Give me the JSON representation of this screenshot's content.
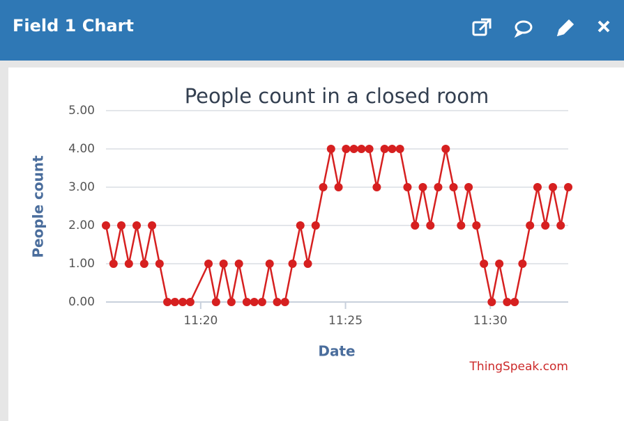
{
  "panel": {
    "title": "Field 1 Chart"
  },
  "chart_data": {
    "type": "line",
    "title": "People count in a closed room",
    "x_label": "Date",
    "y_label": "People count",
    "credit": "ThingSpeak.com",
    "x": [
      16.73,
      16.99,
      17.26,
      17.52,
      17.79,
      18.05,
      18.32,
      18.58,
      18.85,
      19.11,
      19.38,
      19.64,
      20.27,
      20.53,
      20.79,
      21.06,
      21.32,
      21.59,
      21.85,
      22.12,
      22.38,
      22.64,
      22.91,
      23.17,
      23.44,
      23.7,
      23.97,
      24.23,
      24.5,
      24.76,
      25.02,
      25.29,
      25.55,
      25.82,
      26.08,
      26.35,
      26.61,
      26.88,
      27.14,
      27.4,
      27.67,
      27.93,
      28.2,
      28.46,
      28.73,
      28.99,
      29.25,
      29.52,
      29.78,
      30.05,
      30.31,
      30.58,
      30.84,
      31.11,
      31.37,
      31.63,
      31.9,
      32.16,
      32.43,
      32.69
    ],
    "series": [
      {
        "name": "People count",
        "color": "#d62020",
        "values": [
          2,
          1,
          2,
          1,
          2,
          1,
          2,
          1,
          0,
          0,
          0,
          0,
          1,
          0,
          1,
          0,
          1,
          0,
          0,
          0,
          1,
          0,
          0,
          1,
          2,
          1,
          2,
          3,
          4,
          3,
          4,
          4,
          4,
          4,
          3,
          4,
          4,
          4,
          3,
          2,
          3,
          2,
          3,
          4,
          3,
          2,
          3,
          2,
          1,
          0,
          1,
          0,
          0,
          1,
          2,
          3,
          2,
          3,
          2,
          3
        ]
      }
    ],
    "xlim": [
      16.73,
      32.69
    ],
    "xticks": [
      {
        "value": 20,
        "label": "11:20"
      },
      {
        "value": 25,
        "label": "11:25"
      },
      {
        "value": 30,
        "label": "11:30"
      }
    ],
    "ylim": [
      0,
      5
    ],
    "yticks": [
      {
        "value": 0,
        "label": "0.00"
      },
      {
        "value": 1,
        "label": "1.00"
      },
      {
        "value": 2,
        "label": "2.00"
      },
      {
        "value": 3,
        "label": "3.00"
      },
      {
        "value": 4,
        "label": "4.00"
      },
      {
        "value": 5,
        "label": "5.00"
      }
    ],
    "grid": true
  }
}
